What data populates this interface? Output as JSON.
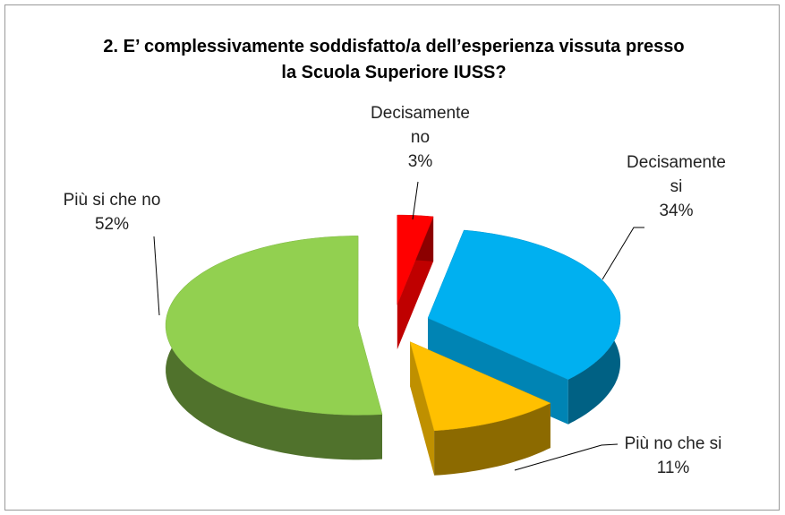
{
  "chart_data": {
    "type": "pie",
    "title": "2. E’ complessivamente soddisfatto/a dell’esperienza vissuta presso la Scuola Superiore IUSS?",
    "categories": [
      "Decisamente no",
      "Decisamente si",
      "Più no che si",
      "Più si che no"
    ],
    "values": [
      3,
      34,
      11,
      52
    ],
    "value_labels": [
      "3%",
      "34%",
      "11%",
      "52%"
    ],
    "colors": [
      "#ff0000",
      "#00b0f0",
      "#ffc000",
      "#92d050"
    ]
  }
}
